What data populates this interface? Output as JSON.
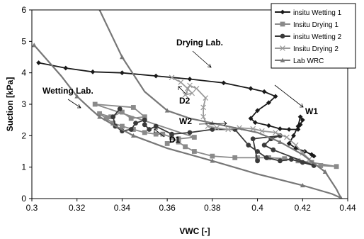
{
  "chart_data": {
    "type": "scatter",
    "xlabel": "VWC [-]",
    "ylabel": "Suction [kPa]",
    "xlim": [
      0.3,
      0.44
    ],
    "ylim": [
      0,
      6
    ],
    "x_ticks": [
      "0.3",
      "0.32",
      "0.34",
      "0.36",
      "0.38",
      "0.4",
      "0.42",
      "0.44"
    ],
    "y_ticks": [
      "0",
      "1",
      "2",
      "3",
      "4",
      "5",
      "6"
    ],
    "grid": false,
    "legend_position": "top-right",
    "series": [
      {
        "name": "insitu Wetting 1",
        "color": "#1a1a1a",
        "marker": "diamond",
        "points": [
          [
            0.303,
            4.32
          ],
          [
            0.315,
            4.15
          ],
          [
            0.327,
            4.03
          ],
          [
            0.34,
            4.0
          ],
          [
            0.355,
            3.9
          ],
          [
            0.37,
            3.8
          ],
          [
            0.385,
            3.68
          ],
          [
            0.397,
            3.5
          ],
          [
            0.403,
            3.4
          ],
          [
            0.408,
            3.25
          ],
          [
            0.405,
            3.05
          ],
          [
            0.4,
            2.8
          ],
          [
            0.397,
            2.55
          ],
          [
            0.399,
            2.42
          ],
          [
            0.405,
            2.32
          ],
          [
            0.41,
            2.22
          ],
          [
            0.414,
            2.2
          ],
          [
            0.418,
            2.2
          ],
          [
            0.419,
            2.35
          ],
          [
            0.42,
            2.5
          ],
          [
            0.419,
            2.6
          ],
          [
            0.418,
            2.3
          ],
          [
            0.416,
            2.0
          ],
          [
            0.414,
            1.75
          ],
          [
            0.417,
            1.6
          ],
          [
            0.421,
            1.5
          ],
          [
            0.424,
            1.4
          ],
          [
            0.425,
            1.35
          ]
        ]
      },
      {
        "name": "Insitu Drying 1",
        "color": "#8a8a8a",
        "marker": "square",
        "points": [
          [
            0.428,
            1.05
          ],
          [
            0.435,
            1.02
          ],
          [
            0.424,
            1.15
          ],
          [
            0.418,
            1.2
          ],
          [
            0.412,
            1.27
          ],
          [
            0.405,
            1.3
          ],
          [
            0.4,
            1.3
          ],
          [
            0.39,
            1.3
          ],
          [
            0.38,
            1.35
          ],
          [
            0.372,
            1.5
          ],
          [
            0.368,
            1.65
          ],
          [
            0.365,
            1.8
          ],
          [
            0.362,
            1.95
          ],
          [
            0.358,
            2.05
          ],
          [
            0.355,
            2.05
          ],
          [
            0.35,
            2.1
          ],
          [
            0.345,
            2.2
          ],
          [
            0.34,
            2.3
          ],
          [
            0.336,
            2.4
          ],
          [
            0.333,
            2.55
          ],
          [
            0.33,
            2.7
          ],
          [
            0.335,
            2.6
          ],
          [
            0.34,
            2.75
          ],
          [
            0.344,
            2.55
          ],
          [
            0.35,
            2.6
          ],
          [
            0.345,
            2.9
          ],
          [
            0.328,
            3.0
          ],
          [
            0.372,
            1.95
          ],
          [
            0.365,
            1.9
          ],
          [
            0.36,
            1.75
          ]
        ]
      },
      {
        "name": "insitu Wetting 2",
        "color": "#3a3a3a",
        "marker": "circle",
        "points": [
          [
            0.339,
            2.85
          ],
          [
            0.336,
            2.6
          ],
          [
            0.337,
            2.3
          ],
          [
            0.34,
            2.15
          ],
          [
            0.344,
            2.2
          ],
          [
            0.346,
            2.4
          ],
          [
            0.35,
            2.5
          ],
          [
            0.35,
            2.35
          ],
          [
            0.352,
            2.2
          ],
          [
            0.355,
            2.3
          ],
          [
            0.362,
            2.05
          ],
          [
            0.37,
            2.1
          ],
          [
            0.38,
            2.2
          ],
          [
            0.39,
            2.2
          ],
          [
            0.396,
            1.7
          ],
          [
            0.4,
            1.5
          ],
          [
            0.404,
            1.3
          ],
          [
            0.41,
            1.2
          ],
          [
            0.415,
            1.25
          ],
          [
            0.42,
            1.15
          ],
          [
            0.425,
            1.05
          ],
          [
            0.407,
            1.55
          ],
          [
            0.403,
            1.7
          ],
          [
            0.406,
            1.9
          ],
          [
            0.41,
            2.0
          ],
          [
            0.398,
            1.9
          ],
          [
            0.4,
            1.2
          ]
        ]
      },
      {
        "name": "Insitu Drying 2",
        "color": "#9a9a9a",
        "marker": "x",
        "points": [
          [
            0.362,
            3.85
          ],
          [
            0.366,
            3.7
          ],
          [
            0.369,
            3.5
          ],
          [
            0.371,
            3.35
          ],
          [
            0.368,
            3.3
          ],
          [
            0.37,
            3.6
          ],
          [
            0.373,
            3.5
          ],
          [
            0.377,
            3.2
          ],
          [
            0.376,
            2.9
          ],
          [
            0.376,
            2.6
          ],
          [
            0.378,
            2.3
          ],
          [
            0.382,
            2.25
          ],
          [
            0.387,
            2.2
          ],
          [
            0.392,
            2.25
          ],
          [
            0.398,
            2.22
          ],
          [
            0.402,
            2.15
          ],
          [
            0.408,
            2.1
          ],
          [
            0.413,
            1.95
          ],
          [
            0.417,
            1.7
          ],
          [
            0.42,
            1.45
          ],
          [
            0.423,
            1.25
          ]
        ]
      },
      {
        "name": "Lab WRC",
        "color": "#777777",
        "marker": "triangle",
        "points": [
          [
            0.301,
            4.88
          ],
          [
            0.313,
            3.9
          ],
          [
            0.32,
            3.25
          ],
          [
            0.326,
            2.85
          ],
          [
            0.33,
            2.6
          ],
          [
            0.336,
            2.35
          ],
          [
            0.345,
            2.0
          ],
          [
            0.36,
            1.6
          ],
          [
            0.38,
            1.2
          ],
          [
            0.4,
            0.78
          ],
          [
            0.42,
            0.42
          ],
          [
            0.433,
            0.15
          ],
          [
            0.437,
            0.02
          ],
          [
            0.435,
            0.3
          ],
          [
            0.43,
            0.85
          ],
          [
            0.42,
            1.4
          ],
          [
            0.41,
            1.8
          ],
          [
            0.4,
            2.1
          ],
          [
            0.38,
            2.4
          ],
          [
            0.37,
            2.55
          ],
          [
            0.36,
            2.8
          ],
          [
            0.35,
            3.4
          ],
          [
            0.34,
            4.5
          ],
          [
            0.33,
            6.0
          ]
        ]
      }
    ],
    "annotations": [
      "Drying Lab.",
      "Wetting Lab.",
      "D2",
      "W2",
      "D1",
      "W1"
    ]
  }
}
